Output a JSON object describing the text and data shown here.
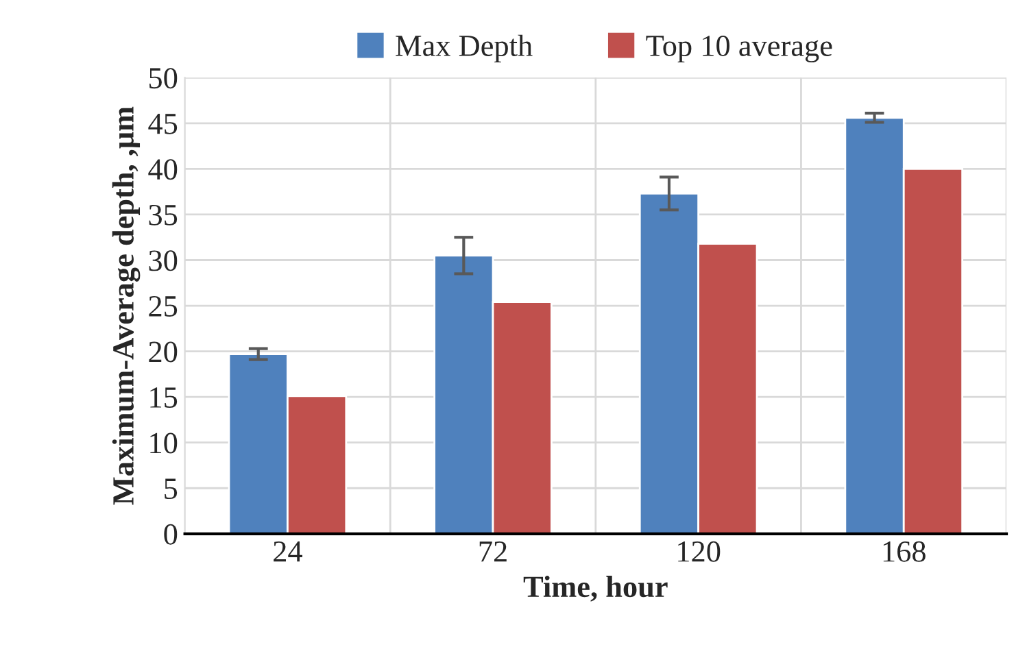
{
  "chart_data": {
    "type": "bar",
    "xlabel": "Time, hour",
    "ylabel": "Maximum-Average depth, ,μm",
    "categories": [
      "24",
      "72",
      "120",
      "168"
    ],
    "series": [
      {
        "name": "Max Depth",
        "color": "#4f81bd",
        "values": [
          19.7,
          30.5,
          37.3,
          45.6
        ],
        "errors": [
          0.6,
          2.0,
          1.8,
          0.5
        ]
      },
      {
        "name": "Top 10 average",
        "color": "#c0504d",
        "values": [
          15.1,
          25.4,
          31.8,
          40.0
        ]
      }
    ],
    "ylim": [
      0,
      50
    ],
    "yticks": [
      0,
      5,
      10,
      15,
      20,
      25,
      30,
      35,
      40,
      45,
      50
    ],
    "grid": true,
    "legend": "top"
  }
}
